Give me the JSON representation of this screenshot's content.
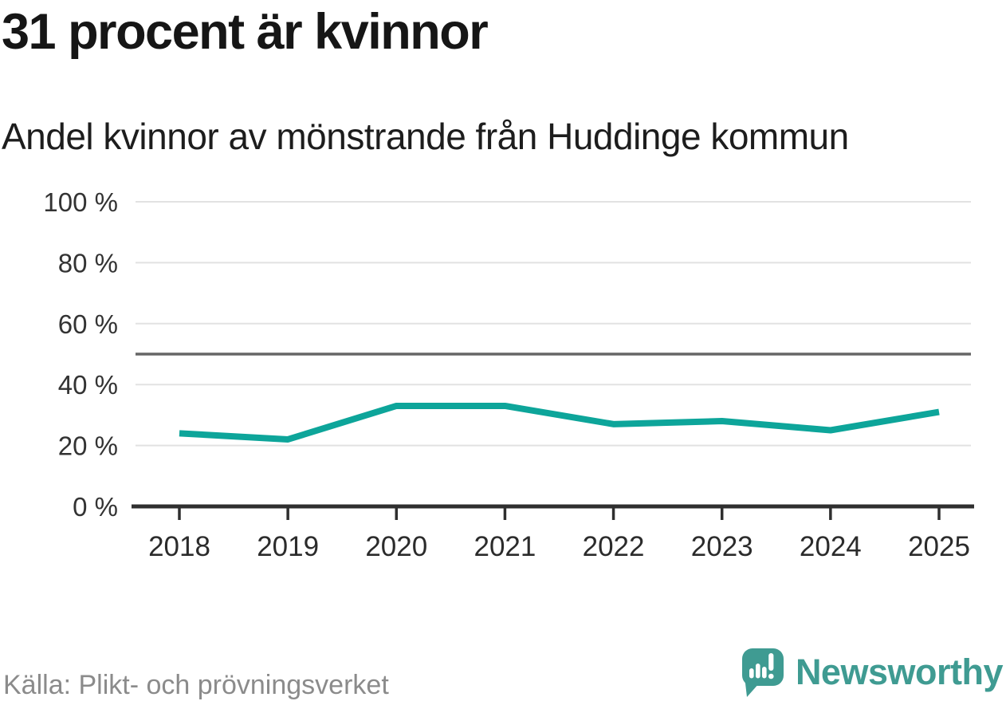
{
  "header": {
    "title": "31 procent är kvinnor",
    "subtitle": "Andel kvinnor av mönstrande från Huddinge kommun"
  },
  "footer": {
    "source": "Källa: Plikt- och prövningsverket",
    "brand": "Newsworthy"
  },
  "icons": {
    "logo": "newsworthy-speech-bubble-with-bar-chart-and-exclamation-mark"
  },
  "colors": {
    "line": "#0da59a",
    "grid": "#e2e2e2",
    "reference_line": "#666666",
    "axis": "#2f2f2f",
    "tick_label": "#333333",
    "title": "#161616",
    "source_text": "#8b8b8b",
    "brand_teal": "#3f9b92"
  },
  "chart_data": {
    "type": "line",
    "title": "31 procent är kvinnor",
    "subtitle": "Andel kvinnor av mönstrande från Huddinge kommun",
    "x": [
      2018,
      2019,
      2020,
      2021,
      2022,
      2023,
      2024,
      2025
    ],
    "series": [
      {
        "name": "Andel kvinnor av mönstrande",
        "values": [
          24,
          22,
          33,
          33,
          27,
          28,
          25,
          31
        ]
      }
    ],
    "unit": "%",
    "xlabel": "",
    "ylabel": "",
    "ylim": [
      0,
      100
    ],
    "yticks": [
      0,
      20,
      40,
      60,
      80,
      100
    ],
    "ytick_format": "{v} %",
    "reference_line": 50,
    "grid": "horizontal",
    "legend": "none",
    "line_width": 8
  }
}
